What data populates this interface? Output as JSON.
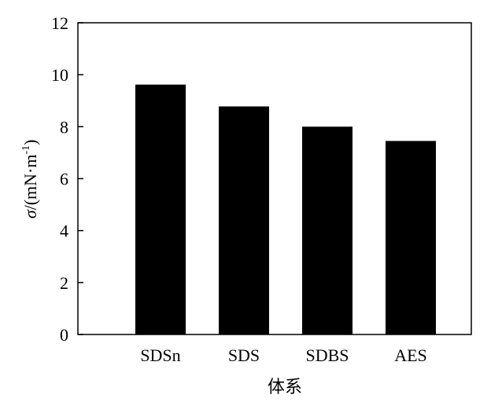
{
  "chart_data": {
    "type": "bar",
    "categories": [
      "SDSn",
      "SDS",
      "SDBS",
      "AES"
    ],
    "values": [
      9.62,
      8.78,
      8.0,
      7.45
    ],
    "xlabel": "体系",
    "ylabel": "σ/(mN·m⁻¹)",
    "ylabel_parts": {
      "symbol": "σ",
      "unit": "/(mN·m",
      "exponent": "-1",
      "close": ")"
    },
    "ylim": [
      0,
      12
    ],
    "yticks": [
      "0",
      "2",
      "4",
      "6",
      "8",
      "10",
      "12"
    ],
    "grid": false,
    "legend": "none",
    "bar_color": "#000000"
  }
}
